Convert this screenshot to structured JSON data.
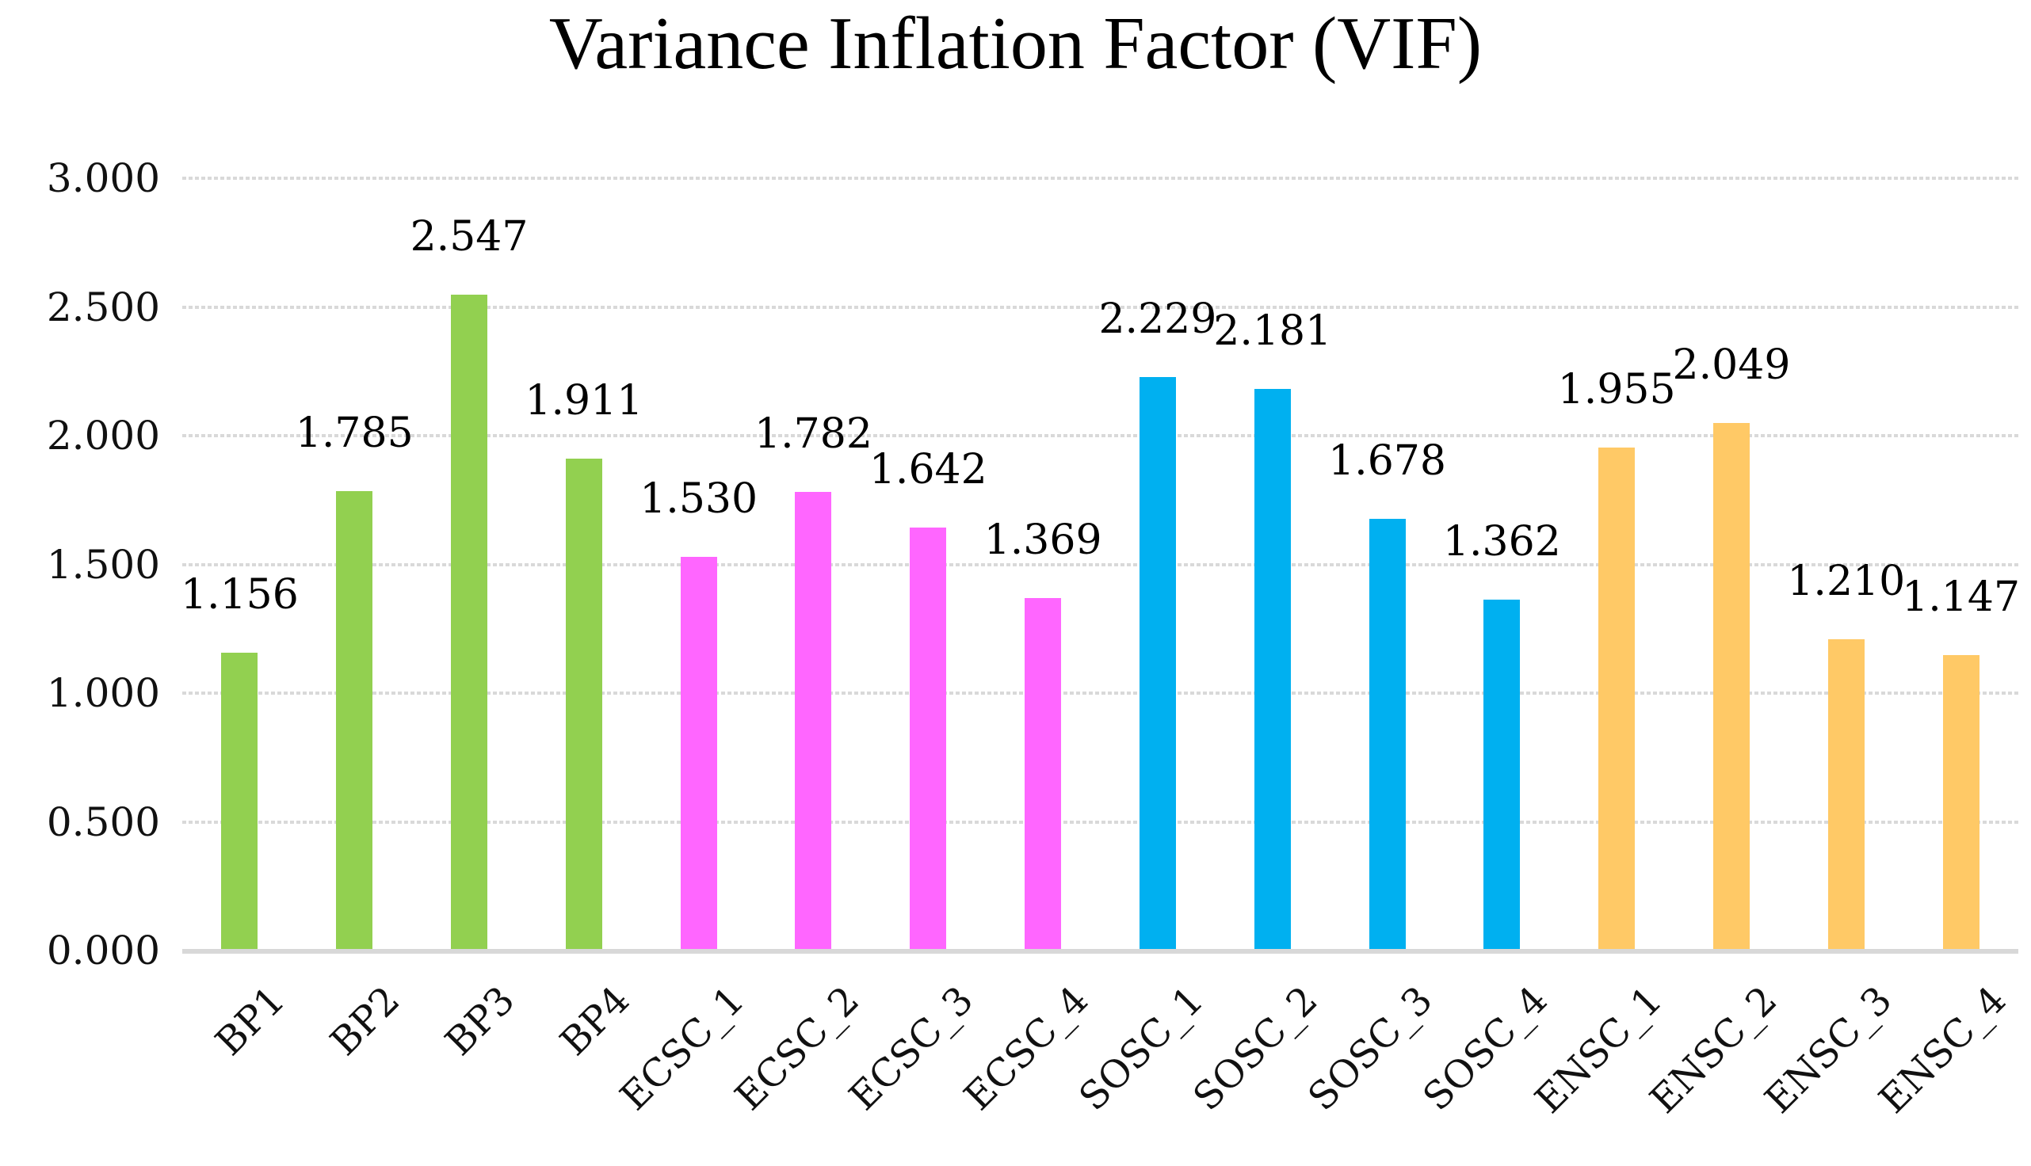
{
  "chart_data": {
    "type": "bar",
    "title": "Variance Inflation Factor (VIF)",
    "categories": [
      "BP1",
      "BP2",
      "BP3",
      "BP4",
      "ECSC_1",
      "ECSC_2",
      "ECSC_3",
      "ECSC_4",
      "SOSC_1",
      "SOSC_2",
      "SOSC_3",
      "SOSC_4",
      "ENSC_1",
      "ENSC_2",
      "ENSC_3",
      "ENSC_4"
    ],
    "values": [
      1.156,
      1.785,
      2.547,
      1.911,
      1.53,
      1.782,
      1.642,
      1.369,
      2.229,
      2.181,
      1.678,
      1.362,
      1.955,
      2.049,
      1.21,
      1.147
    ],
    "value_labels": [
      "1.156",
      "1.785",
      "2.547",
      "1.911",
      "1.530",
      "1.782",
      "1.642",
      "1.369",
      "2.229",
      "2.181",
      "1.678",
      "1.362",
      "1.955",
      "2.049",
      "1.210",
      "1.147"
    ],
    "bar_colors": [
      "#92D050",
      "#92D050",
      "#92D050",
      "#92D050",
      "#FF66FF",
      "#FF66FF",
      "#FF66FF",
      "#FF66FF",
      "#00B0F0",
      "#00B0F0",
      "#00B0F0",
      "#00B0F0",
      "#FFC966",
      "#FFC966",
      "#FFC966",
      "#FFC966"
    ],
    "groups": [
      {
        "prefix": "BP",
        "color": "#92D050"
      },
      {
        "prefix": "ECSC",
        "color": "#FF66FF"
      },
      {
        "prefix": "SOSC",
        "color": "#00B0F0"
      },
      {
        "prefix": "ENSC",
        "color": "#FFC966"
      }
    ],
    "xlabel": "",
    "ylabel": "",
    "ylim": [
      0,
      3
    ],
    "ytick_step": 0.5,
    "ytick_labels": [
      "0.000",
      "0.500",
      "1.000",
      "1.500",
      "2.000",
      "2.500",
      "3.000"
    ],
    "grid": true,
    "gridline_color": "#D9D9D9",
    "axis_line_color": "#D8D8D8",
    "text_color": "#000000",
    "legend_position": "none"
  }
}
